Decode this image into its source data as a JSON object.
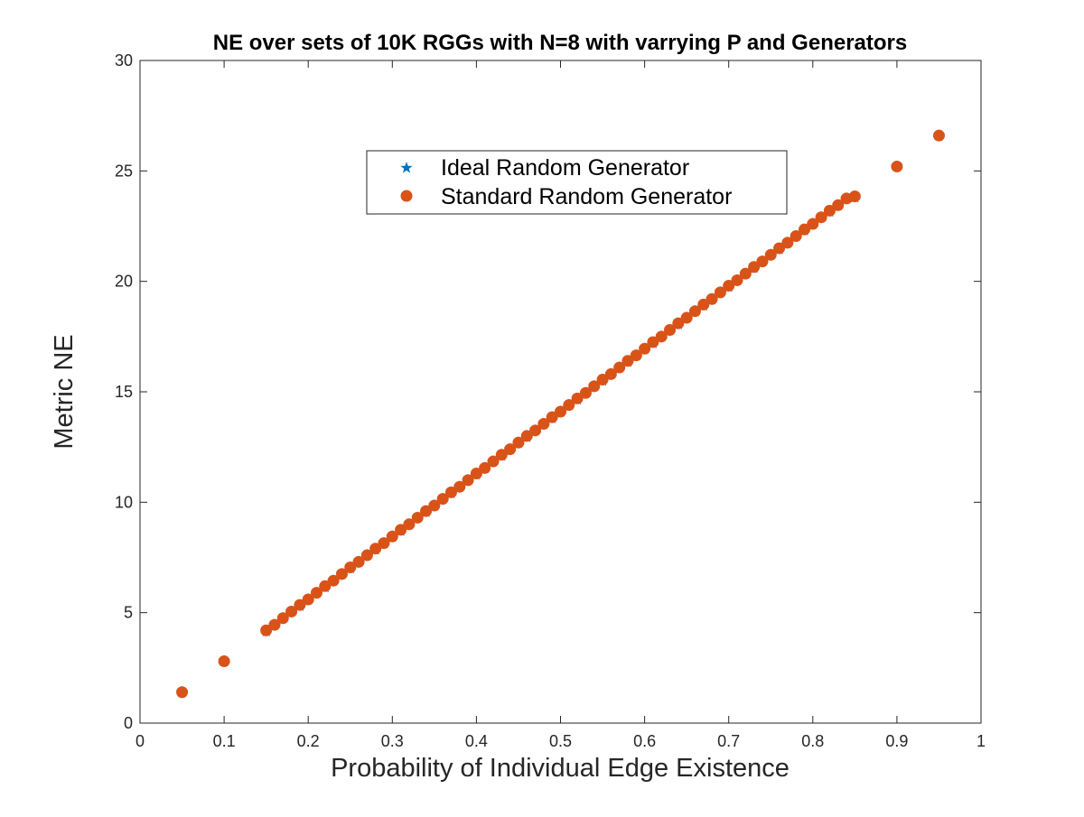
{
  "chart_data": {
    "type": "scatter",
    "title": "NE over sets of 10K RGGs with N=8 with varrying P and Generators",
    "xlabel": "Probability of Individual Edge Existence",
    "ylabel": "Metric NE",
    "xlim": [
      0,
      1
    ],
    "ylim": [
      0,
      30
    ],
    "xticks": [
      0,
      0.1,
      0.2,
      0.3,
      0.4,
      0.5,
      0.6,
      0.7,
      0.8,
      0.9,
      1
    ],
    "xtick_labels": [
      "0",
      "0.1",
      "0.2",
      "0.3",
      "0.4",
      "0.5",
      "0.6",
      "0.7",
      "0.8",
      "0.9",
      "1"
    ],
    "yticks": [
      0,
      5,
      10,
      15,
      20,
      25,
      30
    ],
    "ytick_labels": [
      "0",
      "5",
      "10",
      "15",
      "20",
      "25",
      "30"
    ],
    "grid": false,
    "legend_position": "top-center",
    "series": [
      {
        "name": "Ideal Random Generator",
        "marker": "star",
        "color": "#0072BD",
        "x": [
          0.05,
          0.1,
          0.15,
          0.16,
          0.17,
          0.18,
          0.19,
          0.2,
          0.21,
          0.22,
          0.23,
          0.24,
          0.25,
          0.26,
          0.27,
          0.28,
          0.29,
          0.3,
          0.31,
          0.32,
          0.33,
          0.34,
          0.35,
          0.36,
          0.37,
          0.38,
          0.39,
          0.4,
          0.41,
          0.42,
          0.43,
          0.44,
          0.45,
          0.46,
          0.47,
          0.48,
          0.49,
          0.5,
          0.51,
          0.52,
          0.53,
          0.54,
          0.55,
          0.56,
          0.57,
          0.58,
          0.59,
          0.6,
          0.61,
          0.62,
          0.63,
          0.64,
          0.65,
          0.66,
          0.67,
          0.68,
          0.69,
          0.7,
          0.71,
          0.72,
          0.73,
          0.74,
          0.75,
          0.76,
          0.77,
          0.78,
          0.79,
          0.8,
          0.81,
          0.82,
          0.83,
          0.84,
          0.85,
          0.9,
          0.95
        ],
        "y": [
          1.4,
          2.8,
          4.15,
          4.45,
          4.75,
          5.05,
          5.3,
          5.6,
          5.9,
          6.15,
          6.45,
          6.75,
          7.0,
          7.3,
          7.6,
          7.85,
          8.15,
          8.45,
          8.7,
          9.0,
          9.3,
          9.55,
          9.85,
          10.15,
          10.4,
          10.7,
          11.0,
          11.25,
          11.55,
          11.85,
          12.1,
          12.4,
          12.7,
          12.95,
          13.25,
          13.55,
          13.8,
          14.1,
          14.4,
          14.65,
          14.95,
          15.25,
          15.5,
          15.8,
          16.1,
          16.35,
          16.65,
          16.95,
          17.2,
          17.5,
          17.8,
          18.05,
          18.35,
          18.65,
          18.9,
          19.2,
          19.5,
          19.75,
          20.05,
          20.35,
          20.6,
          20.9,
          21.2,
          21.45,
          21.75,
          22.05,
          22.3,
          22.6,
          22.9,
          23.15,
          23.45,
          23.75,
          23.8,
          25.2,
          26.6
        ]
      },
      {
        "name": "Standard Random Generator",
        "marker": "circle",
        "color": "#D95319",
        "x": [
          0.05,
          0.1,
          0.15,
          0.16,
          0.17,
          0.18,
          0.19,
          0.2,
          0.21,
          0.22,
          0.23,
          0.24,
          0.25,
          0.26,
          0.27,
          0.28,
          0.29,
          0.3,
          0.31,
          0.32,
          0.33,
          0.34,
          0.35,
          0.36,
          0.37,
          0.38,
          0.39,
          0.4,
          0.41,
          0.42,
          0.43,
          0.44,
          0.45,
          0.46,
          0.47,
          0.48,
          0.49,
          0.5,
          0.51,
          0.52,
          0.53,
          0.54,
          0.55,
          0.56,
          0.57,
          0.58,
          0.59,
          0.6,
          0.61,
          0.62,
          0.63,
          0.64,
          0.65,
          0.66,
          0.67,
          0.68,
          0.69,
          0.7,
          0.71,
          0.72,
          0.73,
          0.74,
          0.75,
          0.76,
          0.77,
          0.78,
          0.79,
          0.8,
          0.81,
          0.82,
          0.83,
          0.84,
          0.85,
          0.9,
          0.95
        ],
        "y": [
          1.4,
          2.8,
          4.2,
          4.45,
          4.75,
          5.05,
          5.35,
          5.6,
          5.9,
          6.2,
          6.45,
          6.75,
          7.05,
          7.3,
          7.6,
          7.9,
          8.15,
          8.45,
          8.75,
          9.0,
          9.3,
          9.6,
          9.85,
          10.15,
          10.45,
          10.7,
          11.0,
          11.3,
          11.55,
          11.85,
          12.15,
          12.4,
          12.7,
          13.0,
          13.25,
          13.55,
          13.85,
          14.1,
          14.4,
          14.7,
          14.95,
          15.25,
          15.55,
          15.8,
          16.1,
          16.4,
          16.65,
          16.95,
          17.25,
          17.5,
          17.8,
          18.1,
          18.35,
          18.65,
          18.95,
          19.2,
          19.5,
          19.8,
          20.05,
          20.35,
          20.65,
          20.9,
          21.2,
          21.5,
          21.75,
          22.05,
          22.35,
          22.6,
          22.9,
          23.2,
          23.45,
          23.75,
          23.85,
          25.2,
          26.6
        ]
      }
    ]
  }
}
